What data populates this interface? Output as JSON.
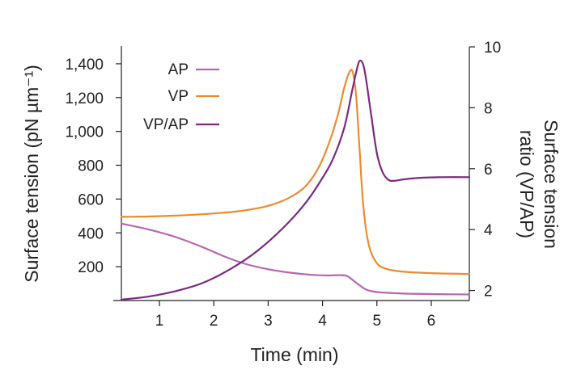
{
  "chart_data": {
    "type": "line",
    "title": "",
    "xlabel": "Time (min)",
    "ylabel_left": "Surface tension (pN µm⁻¹)",
    "ylabel_right_line1": "Surface tension",
    "ylabel_right_line2": "ratio (VP/AP)",
    "x_ticks": [
      1,
      2,
      3,
      4,
      5,
      6
    ],
    "x_tick_labels": [
      "1",
      "2",
      "3",
      "4",
      "5",
      "6"
    ],
    "xlim": [
      0.3,
      6.7
    ],
    "y_left_ticks": [
      200,
      400,
      600,
      800,
      1000,
      1200,
      1400
    ],
    "y_left_tick_labels": [
      "200",
      "400",
      "600",
      "800",
      "1,000",
      "1,200",
      "1,400"
    ],
    "ylim_left": [
      0,
      1500
    ],
    "y_right_ticks": [
      2,
      4,
      6,
      8,
      10
    ],
    "y_right_tick_labels": [
      "2",
      "4",
      "6",
      "8",
      "10"
    ],
    "ylim_right": [
      1.67,
      10.0
    ],
    "legend": {
      "placement": "top-left"
    },
    "colors": {
      "AP": "#b865b2",
      "VP": "#ea8c2e",
      "VP/AP": "#7a2a80"
    },
    "series": [
      {
        "name": "AP",
        "axis": "left",
        "x": [
          0.3,
          0.8,
          1.3,
          1.8,
          2.2,
          2.6,
          3.0,
          3.4,
          3.8,
          4.1,
          4.3,
          4.45,
          4.6,
          4.8,
          5.0,
          5.3,
          5.6,
          6.0,
          6.4,
          6.7
        ],
        "y": [
          455,
          420,
          375,
          315,
          260,
          215,
          185,
          165,
          152,
          148,
          150,
          145,
          110,
          65,
          50,
          44,
          40,
          38,
          37,
          36
        ]
      },
      {
        "name": "VP",
        "axis": "left",
        "x": [
          0.3,
          0.8,
          1.5,
          2.0,
          2.5,
          3.0,
          3.4,
          3.7,
          3.95,
          4.15,
          4.3,
          4.4,
          4.5,
          4.56,
          4.62,
          4.68,
          4.75,
          4.85,
          5.0,
          5.2,
          5.5,
          6.0,
          6.5,
          6.7
        ],
        "y": [
          495,
          497,
          505,
          515,
          530,
          560,
          610,
          680,
          800,
          960,
          1120,
          1260,
          1355,
          1345,
          1200,
          900,
          560,
          330,
          220,
          185,
          170,
          162,
          158,
          157
        ]
      },
      {
        "name": "VP/AP",
        "axis": "right",
        "x": [
          0.3,
          0.8,
          1.3,
          1.8,
          2.3,
          2.8,
          3.3,
          3.7,
          4.0,
          4.2,
          4.4,
          4.55,
          4.65,
          4.7,
          4.75,
          4.8,
          4.9,
          5.0,
          5.1,
          5.2,
          5.3,
          5.5,
          5.8,
          6.2,
          6.7
        ],
        "y": [
          1.7,
          1.8,
          1.98,
          2.25,
          2.7,
          3.3,
          4.1,
          4.9,
          5.7,
          6.35,
          7.35,
          8.6,
          9.4,
          9.55,
          9.4,
          8.95,
          7.7,
          6.5,
          5.9,
          5.65,
          5.6,
          5.65,
          5.7,
          5.72,
          5.72
        ]
      }
    ]
  }
}
